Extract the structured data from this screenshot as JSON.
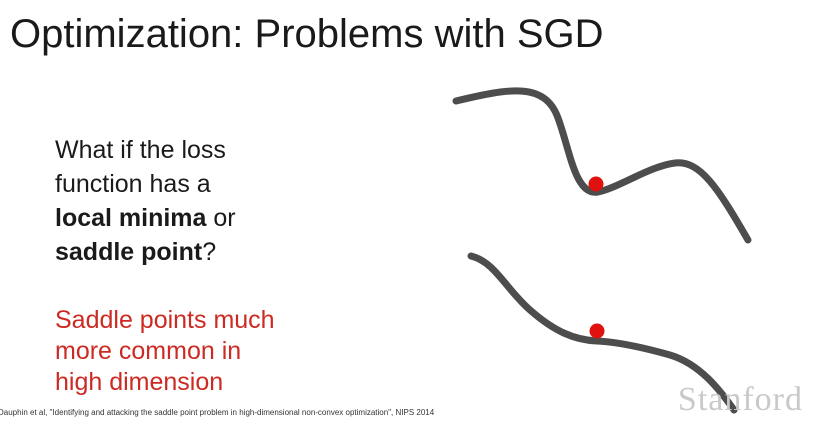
{
  "slide": {
    "title": "Optimization: Problems with SGD",
    "question": {
      "line1": "What if the loss",
      "line2": "function has a",
      "line3_bold": "local minima",
      "line3_rest": " or",
      "line4_bold": "saddle point",
      "line4_rest": "?"
    },
    "note": {
      "line1": "Saddle points much",
      "line2": "more common in",
      "line3": "high dimension"
    },
    "citation": "Dauphin et al, \"Identifying and attacking the saddle point problem in high-dimensional non-convex optimization\", NIPS 2014",
    "watermark": "Stanford"
  },
  "colors": {
    "curve": "#4d4d4d",
    "point": "#e0110e",
    "note_text": "#cc2a22",
    "watermark": "#c9c9c9"
  },
  "figure": {
    "local_minimum_curve": "local-minimum-icon",
    "saddle_point_curve": "saddle-point-icon"
  }
}
